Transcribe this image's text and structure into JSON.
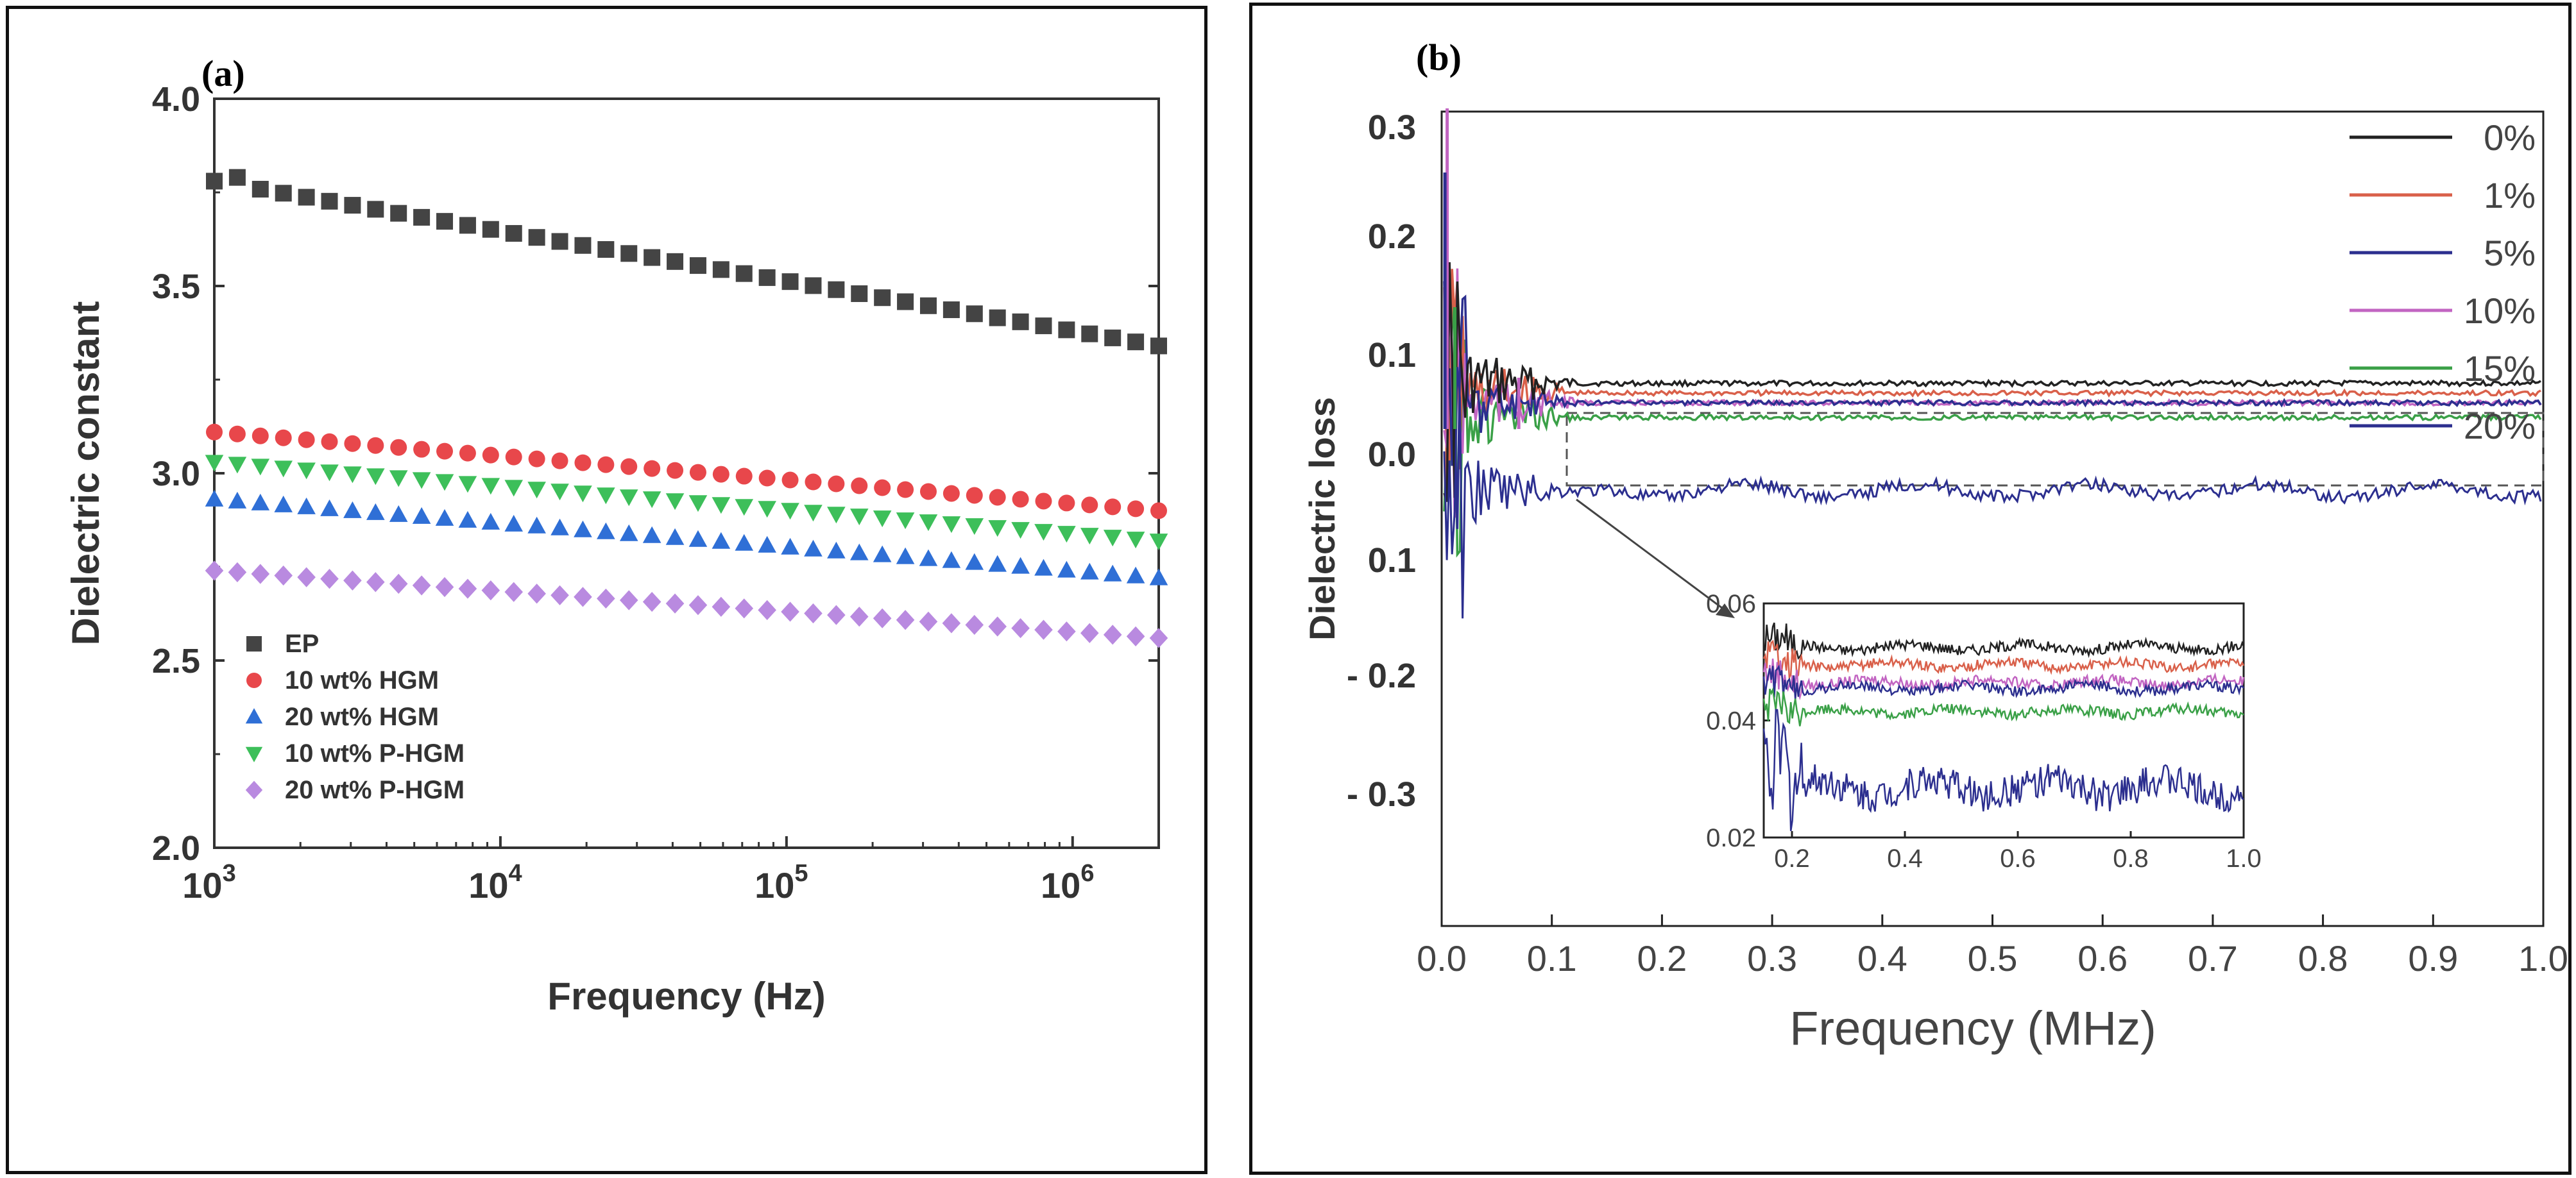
{
  "chart_data": [
    {
      "panel_label": "(a)",
      "type": "scatter",
      "xlabel": "Frequency (Hz)",
      "ylabel": "Dielectric constant",
      "x_scale": "log",
      "xlim": [
        1000,
        2000000
      ],
      "ylim": [
        2.0,
        4.0
      ],
      "x_ticks": [
        {
          "base": "10",
          "exp": "3"
        },
        {
          "base": "10",
          "exp": "4"
        },
        {
          "base": "10",
          "exp": "5"
        },
        {
          "base": "10",
          "exp": "6"
        }
      ],
      "y_ticks": [
        "2.0",
        "2.5",
        "3.0",
        "3.5",
        "4.0"
      ],
      "legend_position": "bottom-left",
      "series": [
        {
          "name": "EP",
          "marker": "square",
          "color": "#444444",
          "start_value": 3.78,
          "end_value": 3.34,
          "first_value": 3.78,
          "second_value": 3.79
        },
        {
          "name": "10 wt% HGM",
          "marker": "circle",
          "color": "#e8474b",
          "start_value": 3.11,
          "end_value": 2.9
        },
        {
          "name": "20 wt% HGM",
          "marker": "triangle-up",
          "color": "#2f6fd6",
          "start_value": 2.93,
          "end_value": 2.72
        },
        {
          "name": "10 wt% P-HGM",
          "marker": "triangle-down",
          "color": "#3dbf5a",
          "start_value": 3.03,
          "end_value": 2.82
        },
        {
          "name": "20 wt% P-HGM",
          "marker": "diamond",
          "color": "#b98ae0",
          "start_value": 2.74,
          "end_value": 2.56
        }
      ]
    },
    {
      "panel_label": "(b)",
      "type": "line",
      "xlabel": "Frequency (MHz)",
      "ylabel": "Dielectric loss",
      "xlim": [
        0.0,
        1.0
      ],
      "x_ticks": [
        "0.0",
        "0.1",
        "0.2",
        "0.3",
        "0.4",
        "0.5",
        "0.6",
        "0.7",
        "0.8",
        "0.9",
        "1.0"
      ],
      "y_ticks": [
        "0.3",
        "0.2",
        "0.1",
        "0.0",
        "0.1",
        "- 0.2",
        "- 0.3"
      ],
      "legend_position": "top-right",
      "series": [
        {
          "name": "0%",
          "color": "#222222",
          "level": 0.062
        },
        {
          "name": "1%",
          "color": "#d9604a",
          "level": 0.06
        },
        {
          "name": "5%",
          "color": "#2c2f8f",
          "level": 0.04
        },
        {
          "name": "10%",
          "color": "#c265c2",
          "level": 0.058
        },
        {
          "name": "15%",
          "color": "#3aa047",
          "level": 0.055
        },
        {
          "name": "20%",
          "color": "#2c2f8f",
          "level": 0.058
        }
      ],
      "inset": {
        "xlim": [
          0.15,
          1.0
        ],
        "ylim": [
          0.02,
          0.06
        ],
        "x_ticks": [
          "0.2",
          "0.4",
          "0.6",
          "0.8",
          "1.0"
        ],
        "y_ticks": [
          "0.02",
          "0.04",
          "0.06"
        ],
        "series": [
          {
            "name": "0%",
            "color": "#222222",
            "level": 0.0525
          },
          {
            "name": "1%",
            "color": "#d9604a",
            "level": 0.0495
          },
          {
            "name": "10%",
            "color": "#c265c2",
            "level": 0.0465
          },
          {
            "name": "20%",
            "color": "#2c2f8f",
            "level": 0.0455
          },
          {
            "name": "15%",
            "color": "#3aa047",
            "level": 0.0415
          },
          {
            "name": "5%",
            "color": "#2c2f8f",
            "level": 0.0285
          }
        ]
      }
    }
  ]
}
